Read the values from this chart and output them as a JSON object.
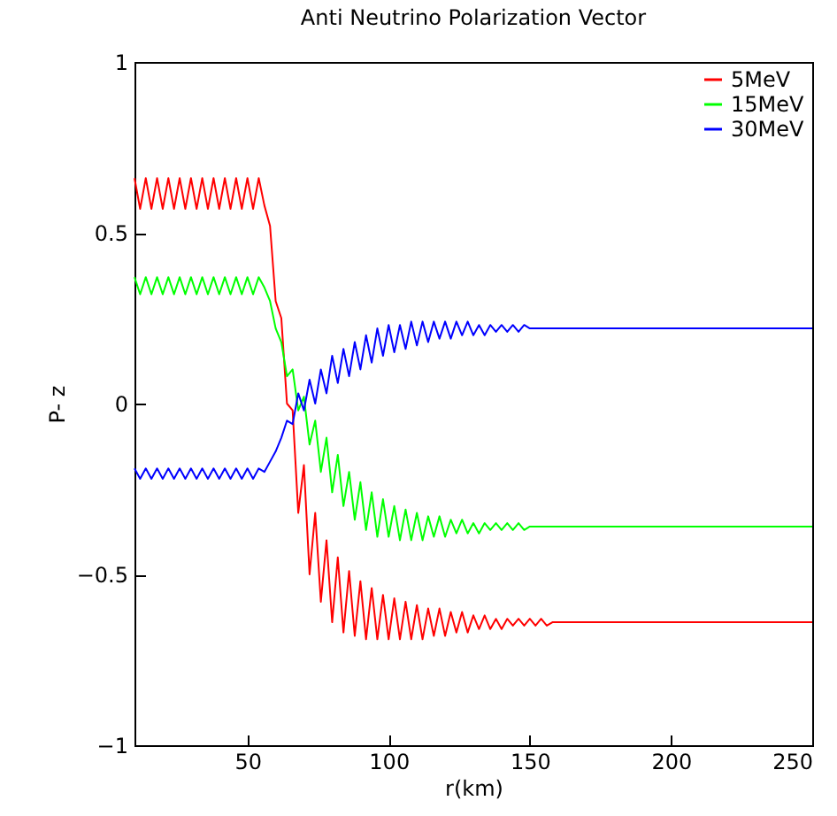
{
  "chart_data": {
    "type": "line",
    "title": "Anti Neutrino Polarization Vector",
    "xlabel": "r(km)",
    "ylabel": "P- z",
    "x": [
      10,
      12,
      14,
      16,
      18,
      20,
      22,
      24,
      26,
      28,
      30,
      32,
      34,
      36,
      38,
      40,
      42,
      44,
      46,
      48,
      50,
      52,
      54,
      56,
      58,
      60,
      62,
      64,
      66,
      68,
      70,
      72,
      74,
      76,
      78,
      80,
      82,
      84,
      86,
      88,
      90,
      92,
      94,
      96,
      98,
      100,
      102,
      104,
      106,
      108,
      110,
      112,
      114,
      116,
      118,
      120,
      122,
      124,
      126,
      128,
      130,
      132,
      134,
      136,
      138,
      140,
      142,
      144,
      146,
      148,
      150,
      152,
      154,
      156,
      158,
      160,
      170,
      180,
      200,
      225,
      250
    ],
    "series": [
      {
        "name": "5MeV",
        "color": "#ff0000",
        "values": [
          0.66,
          0.57,
          0.66,
          0.57,
          0.66,
          0.57,
          0.66,
          0.57,
          0.66,
          0.57,
          0.66,
          0.57,
          0.66,
          0.57,
          0.66,
          0.57,
          0.66,
          0.57,
          0.66,
          0.57,
          0.66,
          0.57,
          0.66,
          0.58,
          0.52,
          0.3,
          0.25,
          0.0,
          -0.02,
          -0.32,
          -0.18,
          -0.5,
          -0.32,
          -0.58,
          -0.4,
          -0.64,
          -0.45,
          -0.67,
          -0.49,
          -0.68,
          -0.52,
          -0.69,
          -0.54,
          -0.69,
          -0.56,
          -0.69,
          -0.57,
          -0.69,
          -0.58,
          -0.69,
          -0.59,
          -0.69,
          -0.6,
          -0.68,
          -0.6,
          -0.68,
          -0.61,
          -0.67,
          -0.61,
          -0.67,
          -0.62,
          -0.66,
          -0.62,
          -0.66,
          -0.63,
          -0.66,
          -0.63,
          -0.65,
          -0.63,
          -0.65,
          -0.63,
          -0.65,
          -0.63,
          -0.65,
          -0.64,
          -0.64,
          -0.64,
          -0.64,
          -0.64,
          -0.64,
          -0.64
        ]
      },
      {
        "name": "15MeV",
        "color": "#00ff00",
        "values": [
          0.37,
          0.32,
          0.37,
          0.32,
          0.37,
          0.32,
          0.37,
          0.32,
          0.37,
          0.32,
          0.37,
          0.32,
          0.37,
          0.32,
          0.37,
          0.32,
          0.37,
          0.32,
          0.37,
          0.32,
          0.37,
          0.32,
          0.37,
          0.34,
          0.3,
          0.22,
          0.18,
          0.08,
          0.1,
          -0.02,
          0.02,
          -0.12,
          -0.05,
          -0.2,
          -0.1,
          -0.26,
          -0.15,
          -0.3,
          -0.2,
          -0.34,
          -0.23,
          -0.37,
          -0.26,
          -0.39,
          -0.28,
          -0.39,
          -0.3,
          -0.4,
          -0.31,
          -0.4,
          -0.32,
          -0.4,
          -0.33,
          -0.39,
          -0.33,
          -0.39,
          -0.34,
          -0.38,
          -0.34,
          -0.38,
          -0.35,
          -0.38,
          -0.35,
          -0.37,
          -0.35,
          -0.37,
          -0.35,
          -0.37,
          -0.35,
          -0.37,
          -0.36,
          -0.36,
          -0.36,
          -0.36,
          -0.36,
          -0.36,
          -0.36,
          -0.36,
          -0.36,
          -0.36,
          -0.36
        ]
      },
      {
        "name": "30MeV",
        "color": "#0000ff",
        "values": [
          -0.19,
          -0.22,
          -0.19,
          -0.22,
          -0.19,
          -0.22,
          -0.19,
          -0.22,
          -0.19,
          -0.22,
          -0.19,
          -0.22,
          -0.19,
          -0.22,
          -0.19,
          -0.22,
          -0.19,
          -0.22,
          -0.19,
          -0.22,
          -0.19,
          -0.22,
          -0.19,
          -0.2,
          -0.17,
          -0.14,
          -0.1,
          -0.05,
          -0.06,
          0.03,
          -0.02,
          0.07,
          0.0,
          0.1,
          0.03,
          0.14,
          0.06,
          0.16,
          0.08,
          0.18,
          0.1,
          0.2,
          0.12,
          0.22,
          0.14,
          0.23,
          0.15,
          0.23,
          0.16,
          0.24,
          0.17,
          0.24,
          0.18,
          0.24,
          0.19,
          0.24,
          0.19,
          0.24,
          0.2,
          0.24,
          0.2,
          0.23,
          0.2,
          0.23,
          0.21,
          0.23,
          0.21,
          0.23,
          0.21,
          0.23,
          0.22,
          0.22,
          0.22,
          0.22,
          0.22,
          0.22,
          0.22,
          0.22,
          0.22,
          0.22,
          0.22
        ]
      }
    ],
    "xlim": [
      10,
      250
    ],
    "xticks": [
      50,
      100,
      150,
      200,
      250
    ],
    "ylim": [
      -1,
      1
    ],
    "yticks": [
      -1,
      -0.5,
      0,
      0.5,
      1
    ],
    "legend": "top right"
  }
}
